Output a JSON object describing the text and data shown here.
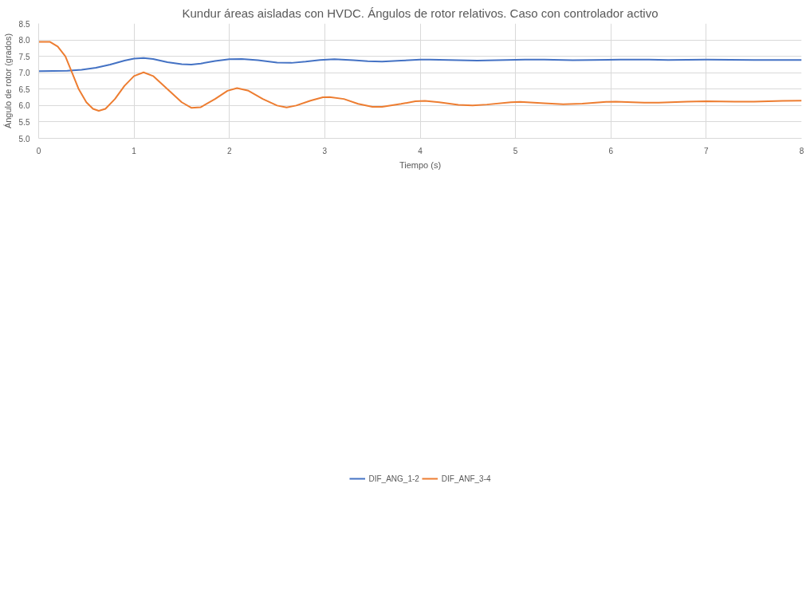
{
  "chart_data": {
    "type": "line",
    "title": "Kundur áreas aisladas con HVDC. Ángulos de rotor relativos. Caso con controlador activo",
    "xlabel": "Tiempo (s)",
    "ylabel": "Ángulo de rotor (grados)",
    "xlim": [
      0,
      8
    ],
    "xticks": [
      0,
      1,
      2,
      3,
      4,
      5,
      6,
      7,
      8
    ],
    "ylim": [
      5.0,
      8.5
    ],
    "yticks": [
      {
        "value": 5.0,
        "label": "5.0"
      },
      {
        "value": 5.5,
        "label": "5.5"
      },
      {
        "value": 6.0,
        "label": "6.0"
      },
      {
        "value": 6.5,
        "label": "6.5"
      },
      {
        "value": 7.0,
        "label": "7.0"
      },
      {
        "value": 7.5,
        "label": "7.5"
      },
      {
        "value": 8.0,
        "label": "8.0"
      },
      {
        "value": 8.5,
        "label": "8.5"
      }
    ],
    "grid": true,
    "legend": "bottom",
    "marker": "none",
    "line_style": "solid",
    "series": [
      {
        "name": "DIF_ANG_1-2",
        "color": "#4472c4",
        "x": [
          0,
          0.3,
          0.45,
          0.6,
          0.75,
          0.9,
          1.0,
          1.1,
          1.2,
          1.35,
          1.5,
          1.6,
          1.7,
          1.85,
          2.0,
          2.13,
          2.3,
          2.5,
          2.65,
          2.8,
          2.95,
          3.1,
          3.3,
          3.45,
          3.6,
          3.8,
          4.0,
          4.1,
          4.3,
          4.6,
          4.8,
          5.1,
          5.3,
          5.6,
          5.8,
          6.1,
          6.4,
          6.6,
          7.0,
          7.5,
          8.0
        ],
        "values": [
          7.05,
          7.06,
          7.09,
          7.15,
          7.25,
          7.37,
          7.43,
          7.45,
          7.42,
          7.32,
          7.26,
          7.25,
          7.28,
          7.36,
          7.41,
          7.42,
          7.38,
          7.31,
          7.3,
          7.34,
          7.39,
          7.41,
          7.38,
          7.35,
          7.34,
          7.37,
          7.4,
          7.4,
          7.39,
          7.37,
          7.38,
          7.4,
          7.4,
          7.38,
          7.39,
          7.4,
          7.4,
          7.39,
          7.4,
          7.39,
          7.39
        ]
      },
      {
        "name": "DIF_ANF_3-4",
        "color": "#ed7d31",
        "x": [
          0,
          0.12,
          0.2,
          0.28,
          0.35,
          0.42,
          0.5,
          0.57,
          0.63,
          0.7,
          0.8,
          0.9,
          1.0,
          1.1,
          1.2,
          1.35,
          1.5,
          1.6,
          1.7,
          1.85,
          1.98,
          2.08,
          2.2,
          2.35,
          2.5,
          2.6,
          2.7,
          2.85,
          2.98,
          3.05,
          3.2,
          3.35,
          3.5,
          3.6,
          3.8,
          3.95,
          4.05,
          4.2,
          4.4,
          4.55,
          4.7,
          4.95,
          5.05,
          5.3,
          5.5,
          5.7,
          5.95,
          6.05,
          6.35,
          6.5,
          6.8,
          7.0,
          7.3,
          7.5,
          7.8,
          8.0
        ],
        "values": [
          7.94,
          7.94,
          7.8,
          7.5,
          7.0,
          6.5,
          6.1,
          5.9,
          5.84,
          5.9,
          6.2,
          6.6,
          6.9,
          7.01,
          6.9,
          6.5,
          6.1,
          5.93,
          5.95,
          6.2,
          6.45,
          6.53,
          6.45,
          6.2,
          6.0,
          5.94,
          6.0,
          6.15,
          6.25,
          6.26,
          6.2,
          6.05,
          5.96,
          5.96,
          6.05,
          6.13,
          6.14,
          6.1,
          6.02,
          6.0,
          6.03,
          6.1,
          6.11,
          6.07,
          6.04,
          6.06,
          6.11,
          6.12,
          6.09,
          6.09,
          6.12,
          6.13,
          6.12,
          6.12,
          6.14,
          6.15
        ]
      }
    ]
  }
}
